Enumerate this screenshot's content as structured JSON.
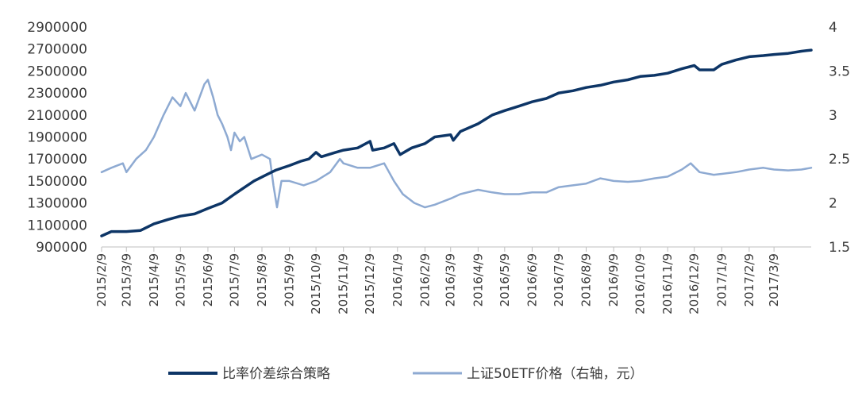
{
  "chart_data": {
    "type": "line",
    "title": "",
    "xlabel": "",
    "ylabel_left": "",
    "ylabel_right": "",
    "left_axis": {
      "ylim": [
        900000,
        2900000
      ],
      "ticks": [
        900000,
        1100000,
        1300000,
        1500000,
        1700000,
        1900000,
        2100000,
        2300000,
        2500000,
        2700000,
        2900000
      ],
      "tick_labels": [
        "900000",
        "1100000",
        "1300000",
        "1500000",
        "1700000",
        "1900000",
        "2100000",
        "2300000",
        "2500000",
        "2700000",
        "2900000"
      ]
    },
    "right_axis": {
      "ylim": [
        1.5,
        4
      ],
      "ticks": [
        1.5,
        2,
        2.5,
        3,
        3.5,
        4
      ],
      "tick_labels": [
        "1.5",
        "2",
        "2.5",
        "3",
        "3.5",
        "4"
      ]
    },
    "x_range": [
      "2015-02-09",
      "2017-04-20"
    ],
    "x_ticks": [
      "2015-02-09",
      "2015-03-09",
      "2015-04-09",
      "2015-05-09",
      "2015-06-09",
      "2015-07-09",
      "2015-08-09",
      "2015-09-09",
      "2015-10-09",
      "2015-11-09",
      "2015-12-09",
      "2016-01-09",
      "2016-02-09",
      "2016-03-09",
      "2016-04-09",
      "2016-05-09",
      "2016-06-09",
      "2016-07-09",
      "2016-08-09",
      "2016-09-09",
      "2016-10-09",
      "2016-11-09",
      "2016-12-09",
      "2017-01-09",
      "2017-02-09",
      "2017-03-09"
    ],
    "x_tick_labels": [
      "2015/2/9",
      "2015/3/9",
      "2015/4/9",
      "2015/5/9",
      "2015/6/9",
      "2015/7/9",
      "2015/8/9",
      "2015/9/9",
      "2015/10/9",
      "2015/11/9",
      "2015/12/9",
      "2016/1/9",
      "2016/2/9",
      "2016/3/9",
      "2016/4/9",
      "2016/5/9",
      "2016/6/9",
      "2016/7/9",
      "2016/8/9",
      "2016/9/9",
      "2016/10/9",
      "2016/11/9",
      "2016/12/9",
      "2017/1/9",
      "2017/2/9",
      "2017/3/9"
    ],
    "grid": false,
    "legend_position": "bottom",
    "series": [
      {
        "name": "比率价差综合策略",
        "axis": "left",
        "color": "#0d3566",
        "points": [
          [
            "2015-02-09",
            1000000
          ],
          [
            "2015-02-20",
            1040000
          ],
          [
            "2015-03-09",
            1040000
          ],
          [
            "2015-03-25",
            1050000
          ],
          [
            "2015-04-09",
            1110000
          ],
          [
            "2015-04-25",
            1150000
          ],
          [
            "2015-05-09",
            1180000
          ],
          [
            "2015-05-25",
            1200000
          ],
          [
            "2015-06-09",
            1250000
          ],
          [
            "2015-06-25",
            1300000
          ],
          [
            "2015-07-09",
            1380000
          ],
          [
            "2015-07-20",
            1440000
          ],
          [
            "2015-07-31",
            1500000
          ],
          [
            "2015-08-15",
            1560000
          ],
          [
            "2015-08-25",
            1600000
          ],
          [
            "2015-09-09",
            1640000
          ],
          [
            "2015-09-22",
            1680000
          ],
          [
            "2015-10-01",
            1700000
          ],
          [
            "2015-10-09",
            1760000
          ],
          [
            "2015-10-15",
            1720000
          ],
          [
            "2015-10-31",
            1760000
          ],
          [
            "2015-11-09",
            1780000
          ],
          [
            "2015-11-25",
            1800000
          ],
          [
            "2015-12-09",
            1860000
          ],
          [
            "2015-12-12",
            1780000
          ],
          [
            "2015-12-25",
            1800000
          ],
          [
            "2016-01-05",
            1840000
          ],
          [
            "2016-01-12",
            1740000
          ],
          [
            "2016-01-25",
            1800000
          ],
          [
            "2016-02-09",
            1840000
          ],
          [
            "2016-02-20",
            1900000
          ],
          [
            "2016-03-09",
            1920000
          ],
          [
            "2016-03-12",
            1870000
          ],
          [
            "2016-03-20",
            1950000
          ],
          [
            "2016-04-09",
            2020000
          ],
          [
            "2016-04-25",
            2100000
          ],
          [
            "2016-05-09",
            2140000
          ],
          [
            "2016-05-25",
            2180000
          ],
          [
            "2016-06-09",
            2220000
          ],
          [
            "2016-06-25",
            2250000
          ],
          [
            "2016-07-09",
            2300000
          ],
          [
            "2016-07-25",
            2320000
          ],
          [
            "2016-08-09",
            2350000
          ],
          [
            "2016-08-25",
            2370000
          ],
          [
            "2016-09-09",
            2400000
          ],
          [
            "2016-09-25",
            2420000
          ],
          [
            "2016-10-09",
            2450000
          ],
          [
            "2016-10-25",
            2460000
          ],
          [
            "2016-11-09",
            2480000
          ],
          [
            "2016-11-25",
            2520000
          ],
          [
            "2016-12-09",
            2550000
          ],
          [
            "2016-12-15",
            2510000
          ],
          [
            "2016-12-31",
            2510000
          ],
          [
            "2017-01-09",
            2560000
          ],
          [
            "2017-01-25",
            2600000
          ],
          [
            "2017-02-09",
            2630000
          ],
          [
            "2017-02-25",
            2640000
          ],
          [
            "2017-03-09",
            2650000
          ],
          [
            "2017-03-25",
            2660000
          ],
          [
            "2017-04-09",
            2680000
          ],
          [
            "2017-04-20",
            2690000
          ]
        ]
      },
      {
        "name": "上证50ETF价格（右轴，元）",
        "axis": "right",
        "color": "#8eaad2",
        "points": [
          [
            "2015-02-09",
            2.35
          ],
          [
            "2015-02-20",
            2.4
          ],
          [
            "2015-03-05",
            2.45
          ],
          [
            "2015-03-09",
            2.35
          ],
          [
            "2015-03-20",
            2.5
          ],
          [
            "2015-03-31",
            2.6
          ],
          [
            "2015-04-09",
            2.75
          ],
          [
            "2015-04-20",
            3.0
          ],
          [
            "2015-04-30",
            3.2
          ],
          [
            "2015-05-09",
            3.1
          ],
          [
            "2015-05-15",
            3.25
          ],
          [
            "2015-05-25",
            3.05
          ],
          [
            "2015-06-05",
            3.35
          ],
          [
            "2015-06-09",
            3.4
          ],
          [
            "2015-06-15",
            3.2
          ],
          [
            "2015-06-20",
            3.0
          ],
          [
            "2015-06-25",
            2.9
          ],
          [
            "2015-07-01",
            2.75
          ],
          [
            "2015-07-05",
            2.6
          ],
          [
            "2015-07-09",
            2.8
          ],
          [
            "2015-07-15",
            2.7
          ],
          [
            "2015-07-20",
            2.75
          ],
          [
            "2015-07-28",
            2.5
          ],
          [
            "2015-08-09",
            2.55
          ],
          [
            "2015-08-18",
            2.5
          ],
          [
            "2015-08-22",
            2.2
          ],
          [
            "2015-08-26",
            1.95
          ],
          [
            "2015-08-31",
            2.25
          ],
          [
            "2015-09-09",
            2.25
          ],
          [
            "2015-09-25",
            2.2
          ],
          [
            "2015-10-09",
            2.25
          ],
          [
            "2015-10-25",
            2.35
          ],
          [
            "2015-11-05",
            2.5
          ],
          [
            "2015-11-09",
            2.45
          ],
          [
            "2015-11-25",
            2.4
          ],
          [
            "2015-12-09",
            2.4
          ],
          [
            "2015-12-25",
            2.45
          ],
          [
            "2016-01-05",
            2.25
          ],
          [
            "2016-01-15",
            2.1
          ],
          [
            "2016-01-28",
            2.0
          ],
          [
            "2016-02-09",
            1.95
          ],
          [
            "2016-02-20",
            1.98
          ],
          [
            "2016-03-09",
            2.05
          ],
          [
            "2016-03-20",
            2.1
          ],
          [
            "2016-04-09",
            2.15
          ],
          [
            "2016-04-25",
            2.12
          ],
          [
            "2016-05-09",
            2.1
          ],
          [
            "2016-05-25",
            2.1
          ],
          [
            "2016-06-09",
            2.12
          ],
          [
            "2016-06-25",
            2.12
          ],
          [
            "2016-07-09",
            2.18
          ],
          [
            "2016-07-25",
            2.2
          ],
          [
            "2016-08-09",
            2.22
          ],
          [
            "2016-08-25",
            2.28
          ],
          [
            "2016-09-09",
            2.25
          ],
          [
            "2016-09-25",
            2.24
          ],
          [
            "2016-10-09",
            2.25
          ],
          [
            "2016-10-25",
            2.28
          ],
          [
            "2016-11-09",
            2.3
          ],
          [
            "2016-11-25",
            2.38
          ],
          [
            "2016-12-05",
            2.45
          ],
          [
            "2016-12-15",
            2.35
          ],
          [
            "2016-12-31",
            2.32
          ],
          [
            "2017-01-09",
            2.33
          ],
          [
            "2017-01-25",
            2.35
          ],
          [
            "2017-02-09",
            2.38
          ],
          [
            "2017-02-25",
            2.4
          ],
          [
            "2017-03-09",
            2.38
          ],
          [
            "2017-03-25",
            2.37
          ],
          [
            "2017-04-09",
            2.38
          ],
          [
            "2017-04-20",
            2.4
          ]
        ]
      }
    ]
  }
}
